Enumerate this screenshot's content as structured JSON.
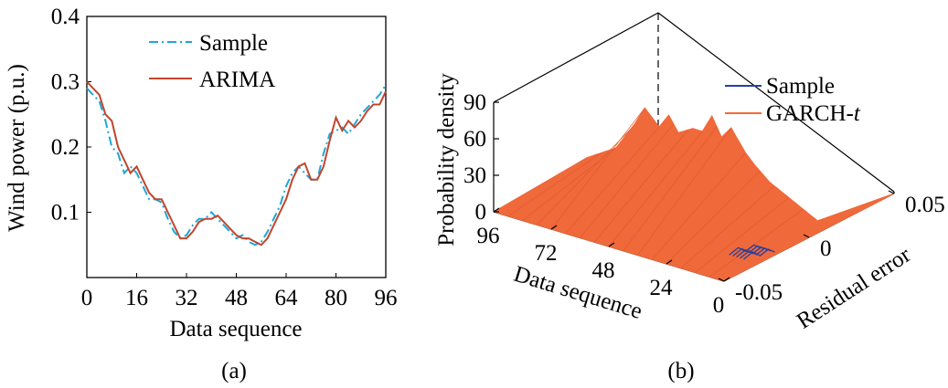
{
  "chart_data": [
    {
      "type": "line",
      "panel_label": "(a)",
      "xlabel": "Data sequence",
      "ylabel": "Wind power (p.u.)",
      "xlim": [
        0,
        96
      ],
      "ylim": [
        0,
        0.4
      ],
      "x_ticks": [
        "0",
        "16",
        "32",
        "48",
        "64",
        "80",
        "96"
      ],
      "y_ticks": [
        "0.1",
        "0.2",
        "0.3",
        "0.4"
      ],
      "legend_position": "top-center",
      "x": [
        0,
        2,
        4,
        6,
        8,
        10,
        12,
        14,
        16,
        18,
        20,
        22,
        24,
        26,
        28,
        30,
        32,
        34,
        36,
        38,
        40,
        42,
        44,
        46,
        48,
        50,
        52,
        54,
        56,
        58,
        60,
        62,
        64,
        66,
        68,
        70,
        72,
        74,
        76,
        78,
        80,
        82,
        84,
        86,
        88,
        90,
        92,
        94,
        96
      ],
      "series": [
        {
          "name": "Sample",
          "style": "dash-dot",
          "color": "#1ea7d8",
          "values": [
            0.29,
            0.28,
            0.27,
            0.24,
            0.2,
            0.19,
            0.16,
            0.17,
            0.16,
            0.14,
            0.12,
            0.12,
            0.115,
            0.09,
            0.07,
            0.06,
            0.065,
            0.08,
            0.09,
            0.09,
            0.1,
            0.09,
            0.08,
            0.07,
            0.06,
            0.065,
            0.055,
            0.05,
            0.055,
            0.07,
            0.09,
            0.11,
            0.14,
            0.16,
            0.17,
            0.16,
            0.15,
            0.15,
            0.19,
            0.22,
            0.225,
            0.23,
            0.22,
            0.235,
            0.25,
            0.26,
            0.27,
            0.28,
            0.295
          ]
        },
        {
          "name": "ARIMA",
          "style": "solid",
          "color": "#c0462c",
          "values": [
            0.3,
            0.29,
            0.28,
            0.25,
            0.24,
            0.2,
            0.18,
            0.16,
            0.17,
            0.15,
            0.13,
            0.12,
            0.12,
            0.1,
            0.08,
            0.06,
            0.06,
            0.07,
            0.085,
            0.09,
            0.09,
            0.095,
            0.085,
            0.075,
            0.065,
            0.06,
            0.06,
            0.055,
            0.05,
            0.06,
            0.08,
            0.1,
            0.12,
            0.15,
            0.17,
            0.175,
            0.15,
            0.15,
            0.17,
            0.21,
            0.245,
            0.225,
            0.24,
            0.23,
            0.24,
            0.255,
            0.265,
            0.265,
            0.285
          ]
        }
      ]
    },
    {
      "type": "surface3d",
      "panel_label": "(b)",
      "xlabel": "Data sequence",
      "ylabel": "Residual error",
      "zlabel": "Probability density",
      "x_ticks": [
        "96",
        "72",
        "48",
        "24",
        "0"
      ],
      "y_ticks": [
        "-0.05",
        "0",
        "0.05"
      ],
      "z_ticks": [
        "0",
        "30",
        "60",
        "90"
      ],
      "xlim": [
        0,
        96
      ],
      "ylim": [
        -0.05,
        0.05
      ],
      "zlim": [
        0,
        90
      ],
      "legend_position": "top-right",
      "series": [
        {
          "name": "Sample",
          "color": "#2a3f9d"
        },
        {
          "name": "GARCH-",
          "name_italic_suffix": "t",
          "color": "#f0693a"
        }
      ],
      "ridge_peaks": [
        {
          "x": 96,
          "z": 5
        },
        {
          "x": 84,
          "z": 20
        },
        {
          "x": 76,
          "z": 45
        },
        {
          "x": 72,
          "z": 60
        },
        {
          "x": 66,
          "z": 48
        },
        {
          "x": 62,
          "z": 60
        },
        {
          "x": 58,
          "z": 48
        },
        {
          "x": 52,
          "z": 55
        },
        {
          "x": 48,
          "z": 55
        },
        {
          "x": 44,
          "z": 70
        },
        {
          "x": 40,
          "z": 55
        },
        {
          "x": 36,
          "z": 65
        },
        {
          "x": 30,
          "z": 48
        },
        {
          "x": 26,
          "z": 40
        },
        {
          "x": 20,
          "z": 30
        },
        {
          "x": 10,
          "z": 20
        },
        {
          "x": 0,
          "z": 10
        }
      ]
    }
  ]
}
